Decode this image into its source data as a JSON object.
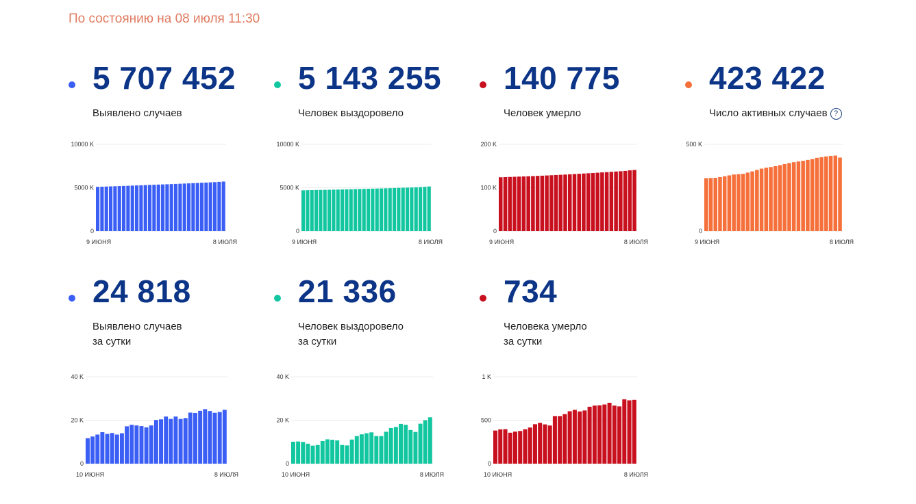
{
  "status_text": "По состоянию на 08 июля 11:30",
  "colors": {
    "cases": "#3b5ff5",
    "recovered": "#12c6a0",
    "deaths": "#c8101e",
    "active": "#f5703a",
    "number": "#0c3487",
    "status": "#e07a5f"
  },
  "cards": [
    {
      "id": "cases-total",
      "value": "5 707 452",
      "label_line1": "Выявлено случаев",
      "label_line2": "",
      "help": ""
    },
    {
      "id": "recovered-total",
      "value": "5 143 255",
      "label_line1": "Человек выздоровело",
      "label_line2": "",
      "help": ""
    },
    {
      "id": "deaths-total",
      "value": "140 775",
      "label_line1": "Человек умерло",
      "label_line2": "",
      "help": ""
    },
    {
      "id": "active-total",
      "value": "423 422",
      "label_line1": "Число активных случаев",
      "label_line2": "",
      "help": "?"
    },
    {
      "id": "cases-daily",
      "value": "24 818",
      "label_line1": "Выявлено случаев",
      "label_line2": "за сутки",
      "help": ""
    },
    {
      "id": "recovered-daily",
      "value": "21 336",
      "label_line1": "Человек выздоровело",
      "label_line2": "за сутки",
      "help": ""
    },
    {
      "id": "deaths-daily",
      "value": "734",
      "label_line1": "Человека умерло",
      "label_line2": "за сутки",
      "help": ""
    }
  ],
  "chart_data": [
    {
      "type": "bar",
      "title": "Выявлено случаев",
      "color_key": "cases",
      "ylim": [
        0,
        10000000
      ],
      "yticks": [
        {
          "v": 0,
          "label": "0"
        },
        {
          "v": 5000000,
          "label": "5000 K"
        },
        {
          "v": 10000000,
          "label": "10000 K"
        }
      ],
      "x_start_label": "9 июня",
      "x_end_label": "8 июля",
      "values": [
        5100000,
        5118000,
        5136000,
        5154000,
        5172000,
        5190000,
        5208000,
        5226000,
        5244000,
        5262000,
        5280000,
        5300000,
        5320000,
        5340000,
        5360000,
        5380000,
        5400000,
        5420000,
        5440000,
        5460000,
        5480000,
        5500000,
        5522000,
        5545000,
        5568000,
        5592000,
        5617000,
        5645000,
        5676000,
        5707452
      ]
    },
    {
      "type": "bar",
      "title": "Человек выздоровело",
      "color_key": "recovered",
      "ylim": [
        0,
        10000000
      ],
      "yticks": [
        {
          "v": 0,
          "label": "0"
        },
        {
          "v": 5000000,
          "label": "5000 K"
        },
        {
          "v": 10000000,
          "label": "10000 K"
        }
      ],
      "x_start_label": "9 июня",
      "x_end_label": "8 июля",
      "values": [
        4700000,
        4712000,
        4724000,
        4736000,
        4746000,
        4756000,
        4766000,
        4778000,
        4790000,
        4802000,
        4815000,
        4828000,
        4842000,
        4856000,
        4870000,
        4882000,
        4894000,
        4906000,
        4920000,
        4935000,
        4950000,
        4966000,
        4982000,
        4998000,
        5013000,
        5029000,
        5047000,
        5068000,
        5105000,
        5143255
      ]
    },
    {
      "type": "bar",
      "title": "Человек умерло",
      "color_key": "deaths",
      "ylim": [
        0,
        200000
      ],
      "yticks": [
        {
          "v": 0,
          "label": "0"
        },
        {
          "v": 100000,
          "label": "100 K"
        },
        {
          "v": 200000,
          "label": "200 K"
        }
      ],
      "x_start_label": "9 июня",
      "x_end_label": "8 июля",
      "values": [
        124000,
        124400,
        124800,
        125200,
        125600,
        126000,
        126400,
        126800,
        127300,
        127700,
        128200,
        128700,
        129200,
        129800,
        130300,
        130900,
        131500,
        132100,
        132700,
        133300,
        133900,
        134600,
        135300,
        135900,
        136600,
        137300,
        138000,
        138700,
        140000,
        140775
      ]
    },
    {
      "type": "bar",
      "title": "Число активных случаев",
      "color_key": "active",
      "ylim": [
        0,
        500000
      ],
      "yticks": [
        {
          "v": 0,
          "label": "0"
        },
        {
          "v": 500000,
          "label": "500 K"
        }
      ],
      "x_start_label": "9 июня",
      "x_end_label": "8 июля",
      "values": [
        305000,
        306000,
        307000,
        311000,
        316000,
        321000,
        326000,
        328000,
        330000,
        337000,
        344000,
        352000,
        360000,
        365000,
        369000,
        374000,
        380000,
        386000,
        392000,
        397000,
        401000,
        405000,
        410000,
        415000,
        422000,
        426000,
        430000,
        433000,
        435000,
        423422
      ]
    },
    {
      "type": "bar",
      "title": "Выявлено случаев за сутки",
      "color_key": "cases",
      "ylim": [
        0,
        40000
      ],
      "yticks": [
        {
          "v": 0,
          "label": "0"
        },
        {
          "v": 20000,
          "label": "20 K"
        },
        {
          "v": 40000,
          "label": "40 K"
        }
      ],
      "x_start_label": "10 июня",
      "x_end_label": "8 июля",
      "values": [
        11700,
        12500,
        13400,
        14500,
        13700,
        14100,
        13400,
        14000,
        17200,
        17900,
        17600,
        17300,
        16700,
        17600,
        20100,
        20400,
        21700,
        20600,
        21700,
        20600,
        21000,
        23500,
        23300,
        24300,
        25100,
        24200,
        23400,
        23800,
        24818
      ]
    },
    {
      "type": "bar",
      "title": "Человек выздоровело за сутки",
      "color_key": "recovered",
      "ylim": [
        0,
        40000
      ],
      "yticks": [
        {
          "v": 0,
          "label": "0"
        },
        {
          "v": 20000,
          "label": "20 K"
        },
        {
          "v": 40000,
          "label": "40 K"
        }
      ],
      "x_start_label": "10 июня",
      "x_end_label": "8 июля",
      "values": [
        10100,
        10200,
        10000,
        9200,
        8300,
        8600,
        10400,
        11200,
        11000,
        10700,
        8600,
        8400,
        11100,
        12700,
        13500,
        14000,
        14400,
        12700,
        12700,
        14700,
        16400,
        16900,
        18300,
        17900,
        15500,
        14600,
        18400,
        20000,
        21336
      ]
    },
    {
      "type": "bar",
      "title": "Человека умерло за сутки",
      "color_key": "deaths",
      "ylim": [
        0,
        1000
      ],
      "yticks": [
        {
          "v": 0,
          "label": "0"
        },
        {
          "v": 500,
          "label": "500"
        },
        {
          "v": 1000,
          "label": "1 K"
        }
      ],
      "x_start_label": "10 июня",
      "x_end_label": "8 июля",
      "values": [
        381,
        395,
        397,
        356,
        369,
        376,
        396,
        416,
        454,
        470,
        452,
        439,
        548,
        548,
        571,
        603,
        620,
        601,
        612,
        655,
        669,
        672,
        681,
        701,
        669,
        659,
        741,
        729,
        734
      ]
    }
  ]
}
